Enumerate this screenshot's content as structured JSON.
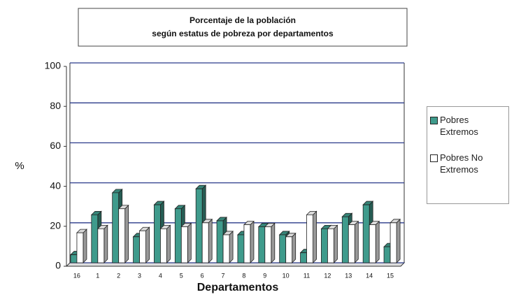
{
  "chart_data": {
    "type": "bar",
    "title": [
      "Porcentaje de la población",
      "según estatus de pobreza por departamentos"
    ],
    "y_label": "%",
    "x_label": "Departamentos",
    "categories": [
      "16",
      "1",
      "2",
      "3",
      "4",
      "5",
      "6",
      "7",
      "8",
      "9",
      "10",
      "11",
      "12",
      "13",
      "14",
      "15"
    ],
    "series": [
      {
        "name": "Pobres Extremos",
        "color": "#3f9b8c",
        "values": [
          4,
          24,
          35,
          13,
          29,
          27,
          37,
          21,
          14,
          18,
          14,
          5,
          17,
          23,
          29,
          8
        ]
      },
      {
        "name": "Pobres No Extremos",
        "color": "#ffffff",
        "values": [
          15,
          17,
          27,
          16,
          17,
          18,
          20,
          14,
          19,
          18,
          13,
          24,
          17,
          19,
          19,
          20
        ]
      }
    ],
    "ylim": [
      0,
      100
    ],
    "yticks": [
      0,
      20,
      40,
      60,
      80,
      100
    ],
    "grid": true
  }
}
